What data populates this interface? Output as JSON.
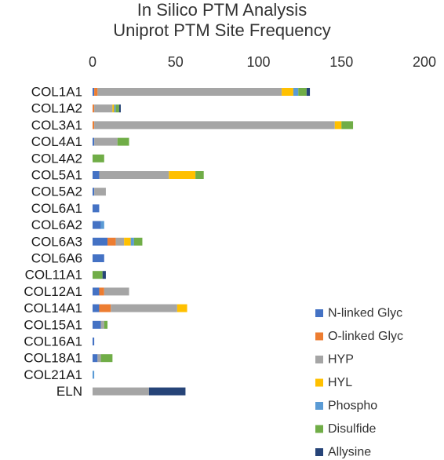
{
  "chart_data": {
    "type": "bar",
    "orientation": "horizontal",
    "stacked": true,
    "title": "In Silico PTM Analysis",
    "subtitle": "Uniprot PTM Site Frequency",
    "xlabel": "",
    "ylabel": "",
    "xlim": [
      0,
      200
    ],
    "x_ticks": [
      "0",
      "50",
      "100",
      "150",
      "200"
    ],
    "x_axis_position": "top",
    "grid": false,
    "legend_position": "bottom-right",
    "categories": [
      "COL1A1",
      "COL1A2",
      "COL3A1",
      "COL4A1",
      "COL4A2",
      "COL5A1",
      "COL5A2",
      "COL6A1",
      "COL6A2",
      "COL6A3",
      "COL6A6",
      "COL11A1",
      "COL12A1",
      "COL14A1",
      "COL15A1",
      "COL16A1",
      "COL18A1",
      "COL21A1",
      "ELN"
    ],
    "series": [
      {
        "name": "N-linked Glyc",
        "color": "#4472C4",
        "values": [
          1,
          0,
          0,
          1,
          0,
          4,
          1,
          4,
          5,
          9,
          7,
          0,
          4,
          4,
          5,
          1,
          3,
          0,
          0
        ]
      },
      {
        "name": "O-linked Glyc",
        "color": "#ED7D31",
        "values": [
          2,
          1,
          1,
          0,
          0,
          0,
          0,
          0,
          0,
          5,
          0,
          0,
          3,
          7,
          0,
          0,
          0,
          0,
          0
        ]
      },
      {
        "name": "HYP",
        "color": "#A5A5A5",
        "values": [
          111,
          11,
          145,
          14,
          0,
          42,
          7,
          0,
          0,
          5,
          0,
          0,
          15,
          40,
          2,
          0,
          2,
          0,
          34
        ]
      },
      {
        "name": "HYL",
        "color": "#FFC000",
        "values": [
          7,
          1,
          4,
          0,
          0,
          16,
          0,
          0,
          0,
          4,
          0,
          0,
          0,
          6,
          0,
          0,
          0,
          0,
          0
        ]
      },
      {
        "name": "Phospho",
        "color": "#5B9BD5",
        "values": [
          3,
          1,
          0,
          0,
          0,
          0,
          0,
          0,
          2,
          2,
          0,
          0,
          0,
          0,
          0,
          0,
          0,
          1,
          0
        ]
      },
      {
        "name": "Disulfide",
        "color": "#70AD47",
        "values": [
          5,
          2,
          7,
          7,
          7,
          5,
          0,
          0,
          0,
          5,
          0,
          6,
          0,
          0,
          2,
          0,
          7,
          0,
          0
        ]
      },
      {
        "name": "Allysine",
        "color": "#264478",
        "values": [
          2,
          1,
          0,
          0,
          0,
          0,
          0,
          0,
          0,
          0,
          0,
          2,
          0,
          0,
          0,
          0,
          0,
          0,
          22
        ]
      }
    ]
  }
}
